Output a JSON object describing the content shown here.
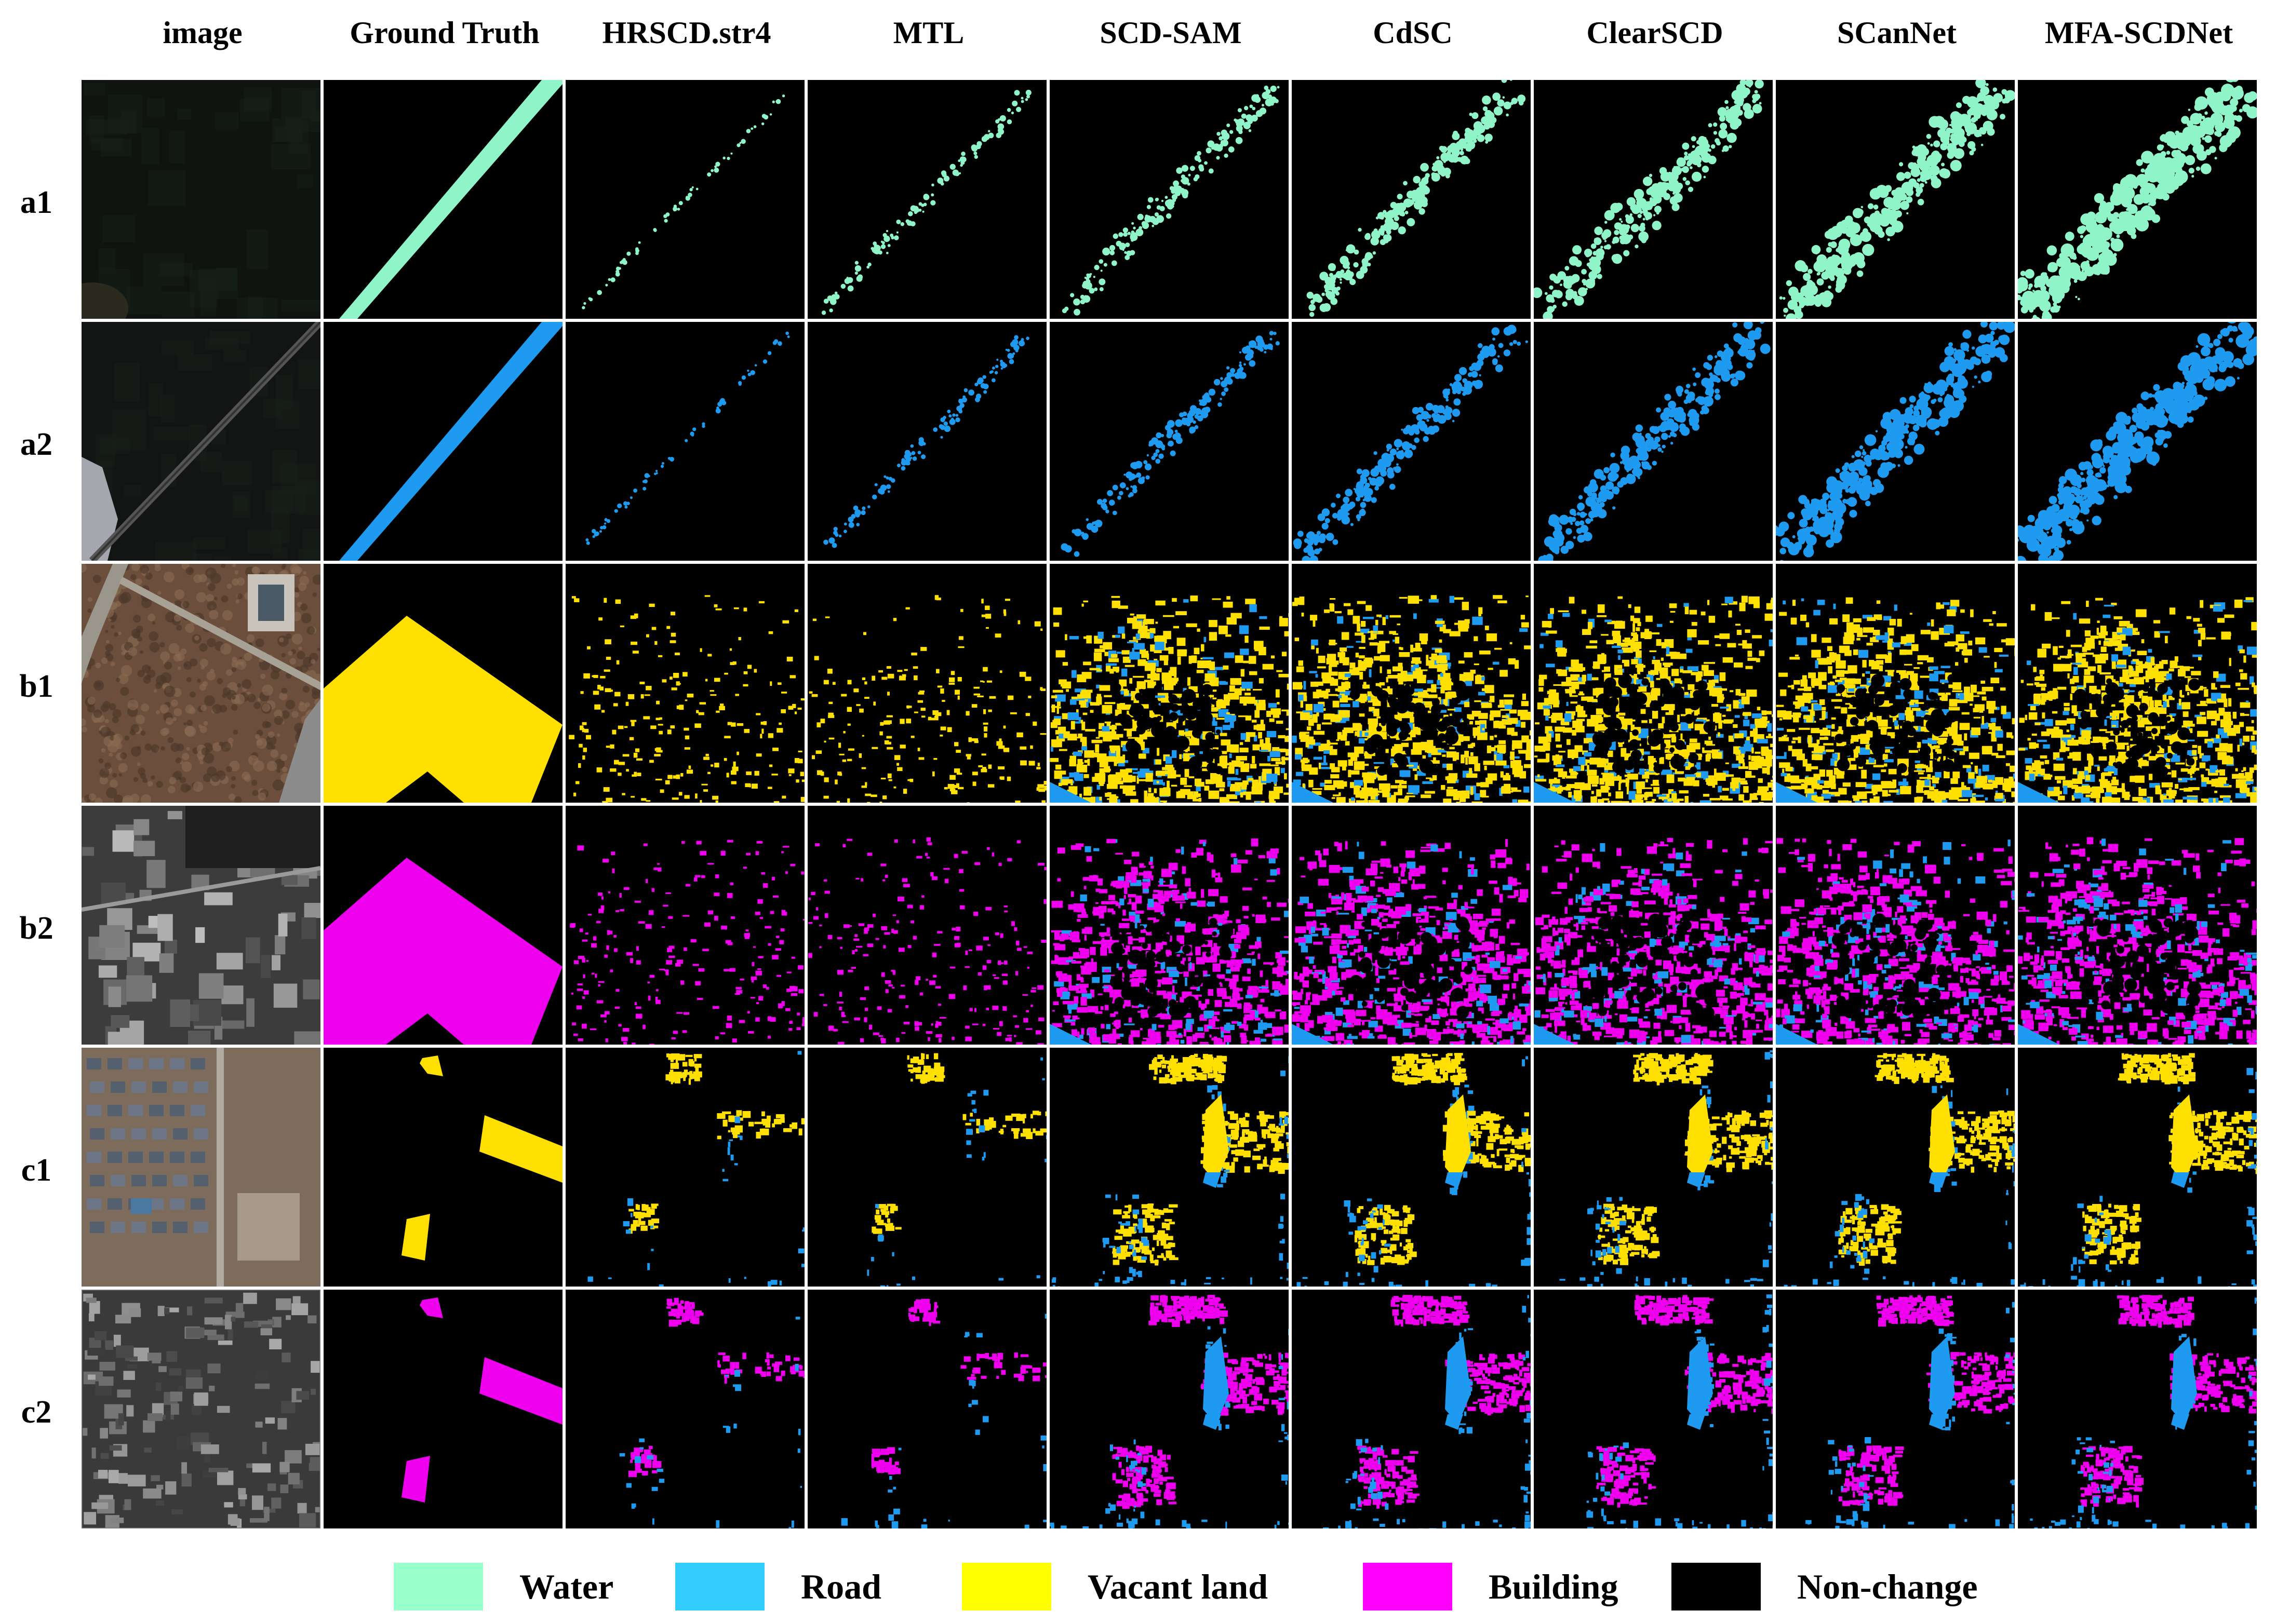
{
  "columns": [
    "image",
    "Ground Truth",
    "HRSCD.str4",
    "MTL",
    "SCD-SAM",
    "CdSC",
    "ClearSCD",
    "SCanNet",
    "MFA-SCDNet"
  ],
  "rows": [
    "a1",
    "a2",
    "b1",
    "b2",
    "c1",
    "c2"
  ],
  "legend": [
    {
      "label": "Water",
      "color": "#99ffcc"
    },
    {
      "label": "Road",
      "color": "#33ccff"
    },
    {
      "label": "Vacant land",
      "color": "#ffff00"
    },
    {
      "label": "Building",
      "color": "#ff00ff"
    },
    {
      "label": "Non-change",
      "color": "#000000"
    }
  ],
  "class_colors": {
    "water": "#8ff5c8",
    "road": "#1e9bf0",
    "vacant": "#ffe000",
    "building": "#ee00ee",
    "nonchange": "#000000"
  },
  "pixel_change_map_ratio": {
    "_note_omitted": true
  }
}
